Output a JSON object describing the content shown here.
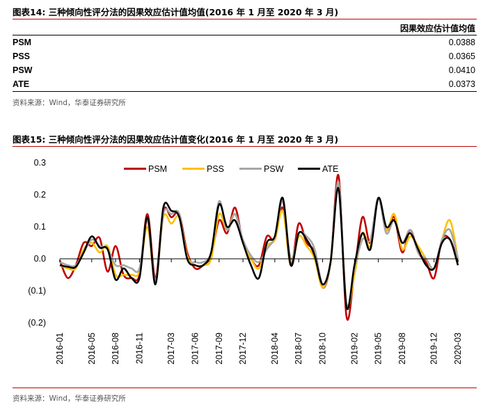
{
  "table_section": {
    "title": "图表14:   三种倾向性评分法的因果效应估计值均值(2016 年 1 月至 2020 年 3 月)",
    "column_header": "因果效应估计值均值",
    "rows": [
      {
        "label": "PSM",
        "value": "0.0388"
      },
      {
        "label": "PSS",
        "value": "0.0365"
      },
      {
        "label": "PSW",
        "value": "0.0410"
      },
      {
        "label": "ATE",
        "value": "0.0373"
      }
    ],
    "source": "资料来源：Wind，华泰证券研究所"
  },
  "chart_section": {
    "title": "图表15:   三种倾向性评分法的因果效应估计值变化(2016 年 1 月至 2020 年 3 月)",
    "source": "资料来源：Wind，华泰证券研究所"
  },
  "colors": {
    "PSM": "#c00000",
    "PSS": "#ffc000",
    "PSW": "#a6a6a6",
    "ATE": "#000000",
    "rule": "#c00000"
  },
  "chart_data": {
    "type": "line",
    "title": "",
    "xlabel": "",
    "ylabel": "",
    "ylim": [
      -0.2,
      0.3
    ],
    "yticks": [
      "(0.2)",
      "(0.1)",
      "0.0",
      "0.1",
      "0.2",
      "0.3"
    ],
    "grid": false,
    "legend_position": "top",
    "x_tick_labels": [
      "2016-01",
      "2016-05",
      "2016-08",
      "2016-11",
      "2017-03",
      "2017-06",
      "2017-09",
      "2017-12",
      "2018-04",
      "2018-07",
      "2018-10",
      "2019-02",
      "2019-05",
      "2019-08",
      "2019-12",
      "2020-03"
    ],
    "x": [
      "2016-01",
      "2016-02",
      "2016-03",
      "2016-04",
      "2016-05",
      "2016-06",
      "2016-07",
      "2016-08",
      "2016-09",
      "2016-10",
      "2016-11",
      "2016-12",
      "2017-01",
      "2017-02",
      "2017-03",
      "2017-04",
      "2017-05",
      "2017-06",
      "2017-07",
      "2017-08",
      "2017-09",
      "2017-10",
      "2017-11",
      "2017-12",
      "2018-01",
      "2018-02",
      "2018-03",
      "2018-04",
      "2018-05",
      "2018-06",
      "2018-07",
      "2018-08",
      "2018-09",
      "2018-10",
      "2018-11",
      "2018-12",
      "2019-01",
      "2019-02",
      "2019-03",
      "2019-04",
      "2019-05",
      "2019-06",
      "2019-07",
      "2019-08",
      "2019-09",
      "2019-10",
      "2019-11",
      "2019-12",
      "2020-01",
      "2020-02",
      "2020-03"
    ],
    "series": [
      {
        "name": "PSM",
        "values": [
          -0.005,
          -0.06,
          -0.02,
          0.05,
          0.04,
          0.065,
          -0.04,
          0.04,
          -0.05,
          -0.06,
          -0.05,
          0.14,
          -0.06,
          0.15,
          0.13,
          0.14,
          0.02,
          -0.03,
          -0.02,
          0.01,
          0.12,
          0.08,
          0.16,
          0.05,
          0.0,
          -0.02,
          0.07,
          0.06,
          0.16,
          -0.02,
          0.11,
          0.05,
          0.02,
          -0.09,
          -0.01,
          0.26,
          -0.18,
          -0.04,
          0.13,
          0.05,
          0.19,
          0.09,
          0.13,
          0.02,
          0.09,
          0.02,
          -0.01,
          -0.06,
          0.06,
          0.06,
          -0.01
        ]
      },
      {
        "name": "PSS",
        "values": [
          -0.02,
          -0.03,
          -0.03,
          0.03,
          0.05,
          0.02,
          0.04,
          -0.05,
          -0.05,
          -0.05,
          -0.04,
          0.1,
          -0.07,
          0.13,
          0.11,
          0.13,
          0.01,
          -0.02,
          -0.02,
          0.0,
          0.14,
          0.09,
          0.14,
          0.05,
          0.0,
          -0.03,
          0.04,
          0.06,
          0.15,
          -0.02,
          0.07,
          0.04,
          0.0,
          -0.09,
          -0.01,
          0.23,
          -0.14,
          -0.05,
          0.08,
          0.04,
          0.19,
          0.09,
          0.14,
          0.03,
          0.07,
          0.04,
          0.0,
          -0.03,
          0.06,
          0.12,
          0.0
        ]
      },
      {
        "name": "PSW",
        "values": [
          -0.01,
          -0.02,
          -0.02,
          0.02,
          0.06,
          0.04,
          0.03,
          -0.02,
          -0.02,
          -0.03,
          -0.03,
          0.12,
          -0.07,
          0.14,
          0.14,
          0.14,
          0.0,
          -0.01,
          -0.01,
          0.02,
          0.18,
          0.09,
          0.14,
          0.06,
          0.01,
          -0.01,
          0.03,
          0.07,
          0.18,
          0.0,
          0.08,
          0.07,
          0.03,
          -0.08,
          -0.01,
          0.24,
          -0.14,
          -0.03,
          0.06,
          0.06,
          0.19,
          0.08,
          0.12,
          0.05,
          0.09,
          0.02,
          0.0,
          -0.03,
          0.06,
          0.09,
          0.0
        ]
      },
      {
        "name": "ATE",
        "values": [
          -0.02,
          -0.025,
          -0.025,
          0.02,
          0.07,
          0.035,
          0.03,
          -0.065,
          -0.03,
          -0.06,
          -0.06,
          0.13,
          -0.08,
          0.16,
          0.15,
          0.13,
          0.0,
          -0.02,
          -0.02,
          0.02,
          0.17,
          0.1,
          0.12,
          0.05,
          -0.02,
          -0.06,
          0.05,
          0.07,
          0.19,
          -0.02,
          0.08,
          0.06,
          0.01,
          -0.08,
          -0.01,
          0.22,
          -0.15,
          -0.02,
          0.08,
          0.03,
          0.19,
          0.1,
          0.12,
          0.05,
          0.08,
          0.03,
          -0.02,
          -0.03,
          0.05,
          0.06,
          -0.02
        ]
      }
    ]
  }
}
